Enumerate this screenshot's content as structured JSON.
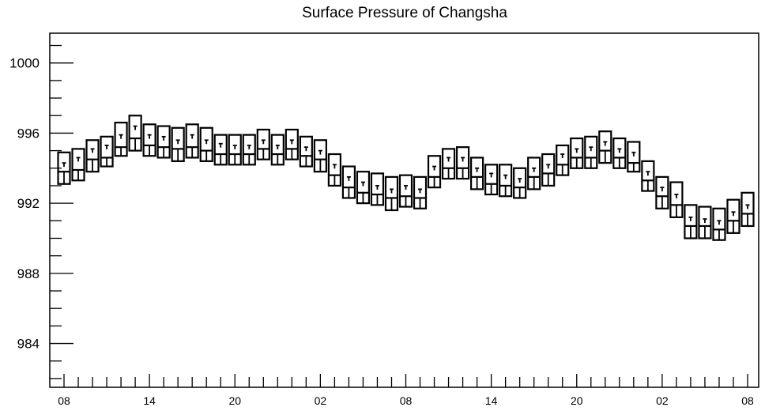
{
  "chart_data": {
    "type": "boxplot",
    "title": "Surface Pressure of Changsha",
    "xlabel": "",
    "ylabel": "",
    "ylim": [
      981.5,
      1001.7
    ],
    "yticks": [
      984,
      988,
      992,
      996,
      1000
    ],
    "x_tick_labels": [
      "08",
      "14",
      "20",
      "02",
      "08",
      "14",
      "20",
      "02",
      "08"
    ],
    "grid": false,
    "legend": "none",
    "colors": {
      "line": "#000000",
      "background": "#ffffff"
    },
    "boxes": [
      {
        "x": 0,
        "min": 993.1,
        "q1": 993.1,
        "median": 993.8,
        "q3": 994.9,
        "max": 994.9,
        "whisker_top": 994.3
      },
      {
        "x": 1,
        "min": 993.3,
        "q1": 993.3,
        "median": 993.9,
        "q3": 995.1,
        "max": 995.1,
        "whisker_top": 994.6
      },
      {
        "x": 2,
        "min": 993.8,
        "q1": 993.8,
        "median": 994.5,
        "q3": 995.6,
        "max": 995.6,
        "whisker_top": 995.1
      },
      {
        "x": 3,
        "min": 994.1,
        "q1": 994.1,
        "median": 994.6,
        "q3": 995.8,
        "max": 995.8,
        "whisker_top": 995.3
      },
      {
        "x": 4,
        "min": 994.7,
        "q1": 994.7,
        "median": 995.2,
        "q3": 996.6,
        "max": 996.6,
        "whisker_top": 995.9
      },
      {
        "x": 5,
        "min": 995.0,
        "q1": 995.0,
        "median": 995.7,
        "q3": 997.0,
        "max": 997.0,
        "whisker_top": 996.4
      },
      {
        "x": 6,
        "min": 994.7,
        "q1": 994.7,
        "median": 995.3,
        "q3": 996.5,
        "max": 996.5,
        "whisker_top": 995.9
      },
      {
        "x": 7,
        "min": 994.6,
        "q1": 994.6,
        "median": 995.2,
        "q3": 996.4,
        "max": 996.4,
        "whisker_top": 995.8
      },
      {
        "x": 8,
        "min": 994.4,
        "q1": 994.4,
        "median": 995.1,
        "q3": 996.3,
        "max": 996.3,
        "whisker_top": 995.6
      },
      {
        "x": 9,
        "min": 994.6,
        "q1": 994.6,
        "median": 995.2,
        "q3": 996.5,
        "max": 996.5,
        "whisker_top": 995.9
      },
      {
        "x": 10,
        "min": 994.4,
        "q1": 994.4,
        "median": 995.0,
        "q3": 996.3,
        "max": 996.3,
        "whisker_top": 995.6
      },
      {
        "x": 11,
        "min": 994.2,
        "q1": 994.2,
        "median": 994.8,
        "q3": 995.9,
        "max": 995.9,
        "whisker_top": 995.4
      },
      {
        "x": 12,
        "min": 994.2,
        "q1": 994.2,
        "median": 994.8,
        "q3": 995.9,
        "max": 995.9,
        "whisker_top": 995.3
      },
      {
        "x": 13,
        "min": 994.2,
        "q1": 994.2,
        "median": 994.8,
        "q3": 995.9,
        "max": 995.9,
        "whisker_top": 995.3
      },
      {
        "x": 14,
        "min": 994.5,
        "q1": 994.5,
        "median": 995.1,
        "q3": 996.2,
        "max": 996.2,
        "whisker_top": 995.6
      },
      {
        "x": 15,
        "min": 994.2,
        "q1": 994.2,
        "median": 994.8,
        "q3": 995.9,
        "max": 995.9,
        "whisker_top": 995.3
      },
      {
        "x": 16,
        "min": 994.5,
        "q1": 994.5,
        "median": 995.1,
        "q3": 996.2,
        "max": 996.2,
        "whisker_top": 995.6
      },
      {
        "x": 17,
        "min": 994.1,
        "q1": 994.1,
        "median": 994.7,
        "q3": 995.8,
        "max": 995.8,
        "whisker_top": 995.2
      },
      {
        "x": 18,
        "min": 993.8,
        "q1": 993.8,
        "median": 994.5,
        "q3": 995.6,
        "max": 995.6,
        "whisker_top": 995.0
      },
      {
        "x": 19,
        "min": 993.0,
        "q1": 993.0,
        "median": 993.6,
        "q3": 994.8,
        "max": 994.8,
        "whisker_top": 994.2
      },
      {
        "x": 20,
        "min": 992.3,
        "q1": 992.3,
        "median": 992.9,
        "q3": 994.1,
        "max": 994.1,
        "whisker_top": 993.5
      },
      {
        "x": 21,
        "min": 992.0,
        "q1": 992.0,
        "median": 992.6,
        "q3": 993.8,
        "max": 993.8,
        "whisker_top": 993.2
      },
      {
        "x": 22,
        "min": 991.9,
        "q1": 991.9,
        "median": 992.5,
        "q3": 993.7,
        "max": 993.7,
        "whisker_top": 993.0
      },
      {
        "x": 23,
        "min": 991.6,
        "q1": 991.6,
        "median": 992.3,
        "q3": 993.5,
        "max": 993.5,
        "whisker_top": 992.8
      },
      {
        "x": 24,
        "min": 991.8,
        "q1": 991.8,
        "median": 992.4,
        "q3": 993.6,
        "max": 993.6,
        "whisker_top": 993.0
      },
      {
        "x": 25,
        "min": 991.7,
        "q1": 991.7,
        "median": 992.3,
        "q3": 993.5,
        "max": 993.5,
        "whisker_top": 992.8
      },
      {
        "x": 26,
        "min": 992.9,
        "q1": 992.9,
        "median": 993.5,
        "q3": 994.7,
        "max": 994.7,
        "whisker_top": 994.1
      },
      {
        "x": 27,
        "min": 993.4,
        "q1": 993.4,
        "median": 994.0,
        "q3": 995.1,
        "max": 995.1,
        "whisker_top": 994.6
      },
      {
        "x": 28,
        "min": 993.4,
        "q1": 993.4,
        "median": 994.0,
        "q3": 995.2,
        "max": 995.2,
        "whisker_top": 994.6
      },
      {
        "x": 29,
        "min": 992.8,
        "q1": 992.8,
        "median": 993.5,
        "q3": 994.6,
        "max": 994.6,
        "whisker_top": 994.0
      },
      {
        "x": 30,
        "min": 992.5,
        "q1": 992.5,
        "median": 993.1,
        "q3": 994.2,
        "max": 994.2,
        "whisker_top": 993.7
      },
      {
        "x": 31,
        "min": 992.4,
        "q1": 992.4,
        "median": 993.0,
        "q3": 994.2,
        "max": 994.2,
        "whisker_top": 993.6
      },
      {
        "x": 32,
        "min": 992.3,
        "q1": 992.3,
        "median": 992.9,
        "q3": 994.0,
        "max": 994.0,
        "whisker_top": 993.4
      },
      {
        "x": 33,
        "min": 992.8,
        "q1": 992.8,
        "median": 993.5,
        "q3": 994.6,
        "max": 994.6,
        "whisker_top": 994.0
      },
      {
        "x": 34,
        "min": 993.0,
        "q1": 993.0,
        "median": 993.7,
        "q3": 994.8,
        "max": 994.8,
        "whisker_top": 994.2
      },
      {
        "x": 35,
        "min": 993.6,
        "q1": 993.6,
        "median": 994.2,
        "q3": 995.3,
        "max": 995.3,
        "whisker_top": 994.8
      },
      {
        "x": 36,
        "min": 994.0,
        "q1": 994.0,
        "median": 994.6,
        "q3": 995.7,
        "max": 995.7,
        "whisker_top": 995.1
      },
      {
        "x": 37,
        "min": 994.0,
        "q1": 994.0,
        "median": 994.6,
        "q3": 995.8,
        "max": 995.8,
        "whisker_top": 995.2
      },
      {
        "x": 38,
        "min": 994.3,
        "q1": 994.3,
        "median": 995.0,
        "q3": 996.1,
        "max": 996.1,
        "whisker_top": 995.5
      },
      {
        "x": 39,
        "min": 994.0,
        "q1": 994.0,
        "median": 994.6,
        "q3": 995.7,
        "max": 995.7,
        "whisker_top": 995.1
      },
      {
        "x": 40,
        "min": 993.8,
        "q1": 993.8,
        "median": 994.3,
        "q3": 995.5,
        "max": 995.5,
        "whisker_top": 994.9
      },
      {
        "x": 41,
        "min": 992.7,
        "q1": 992.7,
        "median": 993.3,
        "q3": 994.4,
        "max": 994.4,
        "whisker_top": 993.8
      },
      {
        "x": 42,
        "min": 991.7,
        "q1": 991.7,
        "median": 992.4,
        "q3": 993.5,
        "max": 993.5,
        "whisker_top": 992.9
      },
      {
        "x": 43,
        "min": 991.2,
        "q1": 991.2,
        "median": 991.9,
        "q3": 993.2,
        "max": 993.2,
        "whisker_top": 992.5
      },
      {
        "x": 44,
        "min": 990.0,
        "q1": 990.0,
        "median": 990.7,
        "q3": 991.9,
        "max": 991.9,
        "whisker_top": 991.2
      },
      {
        "x": 45,
        "min": 990.0,
        "q1": 990.0,
        "median": 990.7,
        "q3": 991.8,
        "max": 991.8,
        "whisker_top": 991.1
      },
      {
        "x": 46,
        "min": 989.9,
        "q1": 989.9,
        "median": 990.5,
        "q3": 991.7,
        "max": 991.7,
        "whisker_top": 991.0
      },
      {
        "x": 47,
        "min": 990.3,
        "q1": 990.3,
        "median": 991.0,
        "q3": 992.2,
        "max": 992.2,
        "whisker_top": 991.5
      },
      {
        "x": 48,
        "min": 990.7,
        "q1": 990.7,
        "median": 991.4,
        "q3": 992.6,
        "max": 992.6,
        "whisker_top": 991.9
      }
    ]
  }
}
